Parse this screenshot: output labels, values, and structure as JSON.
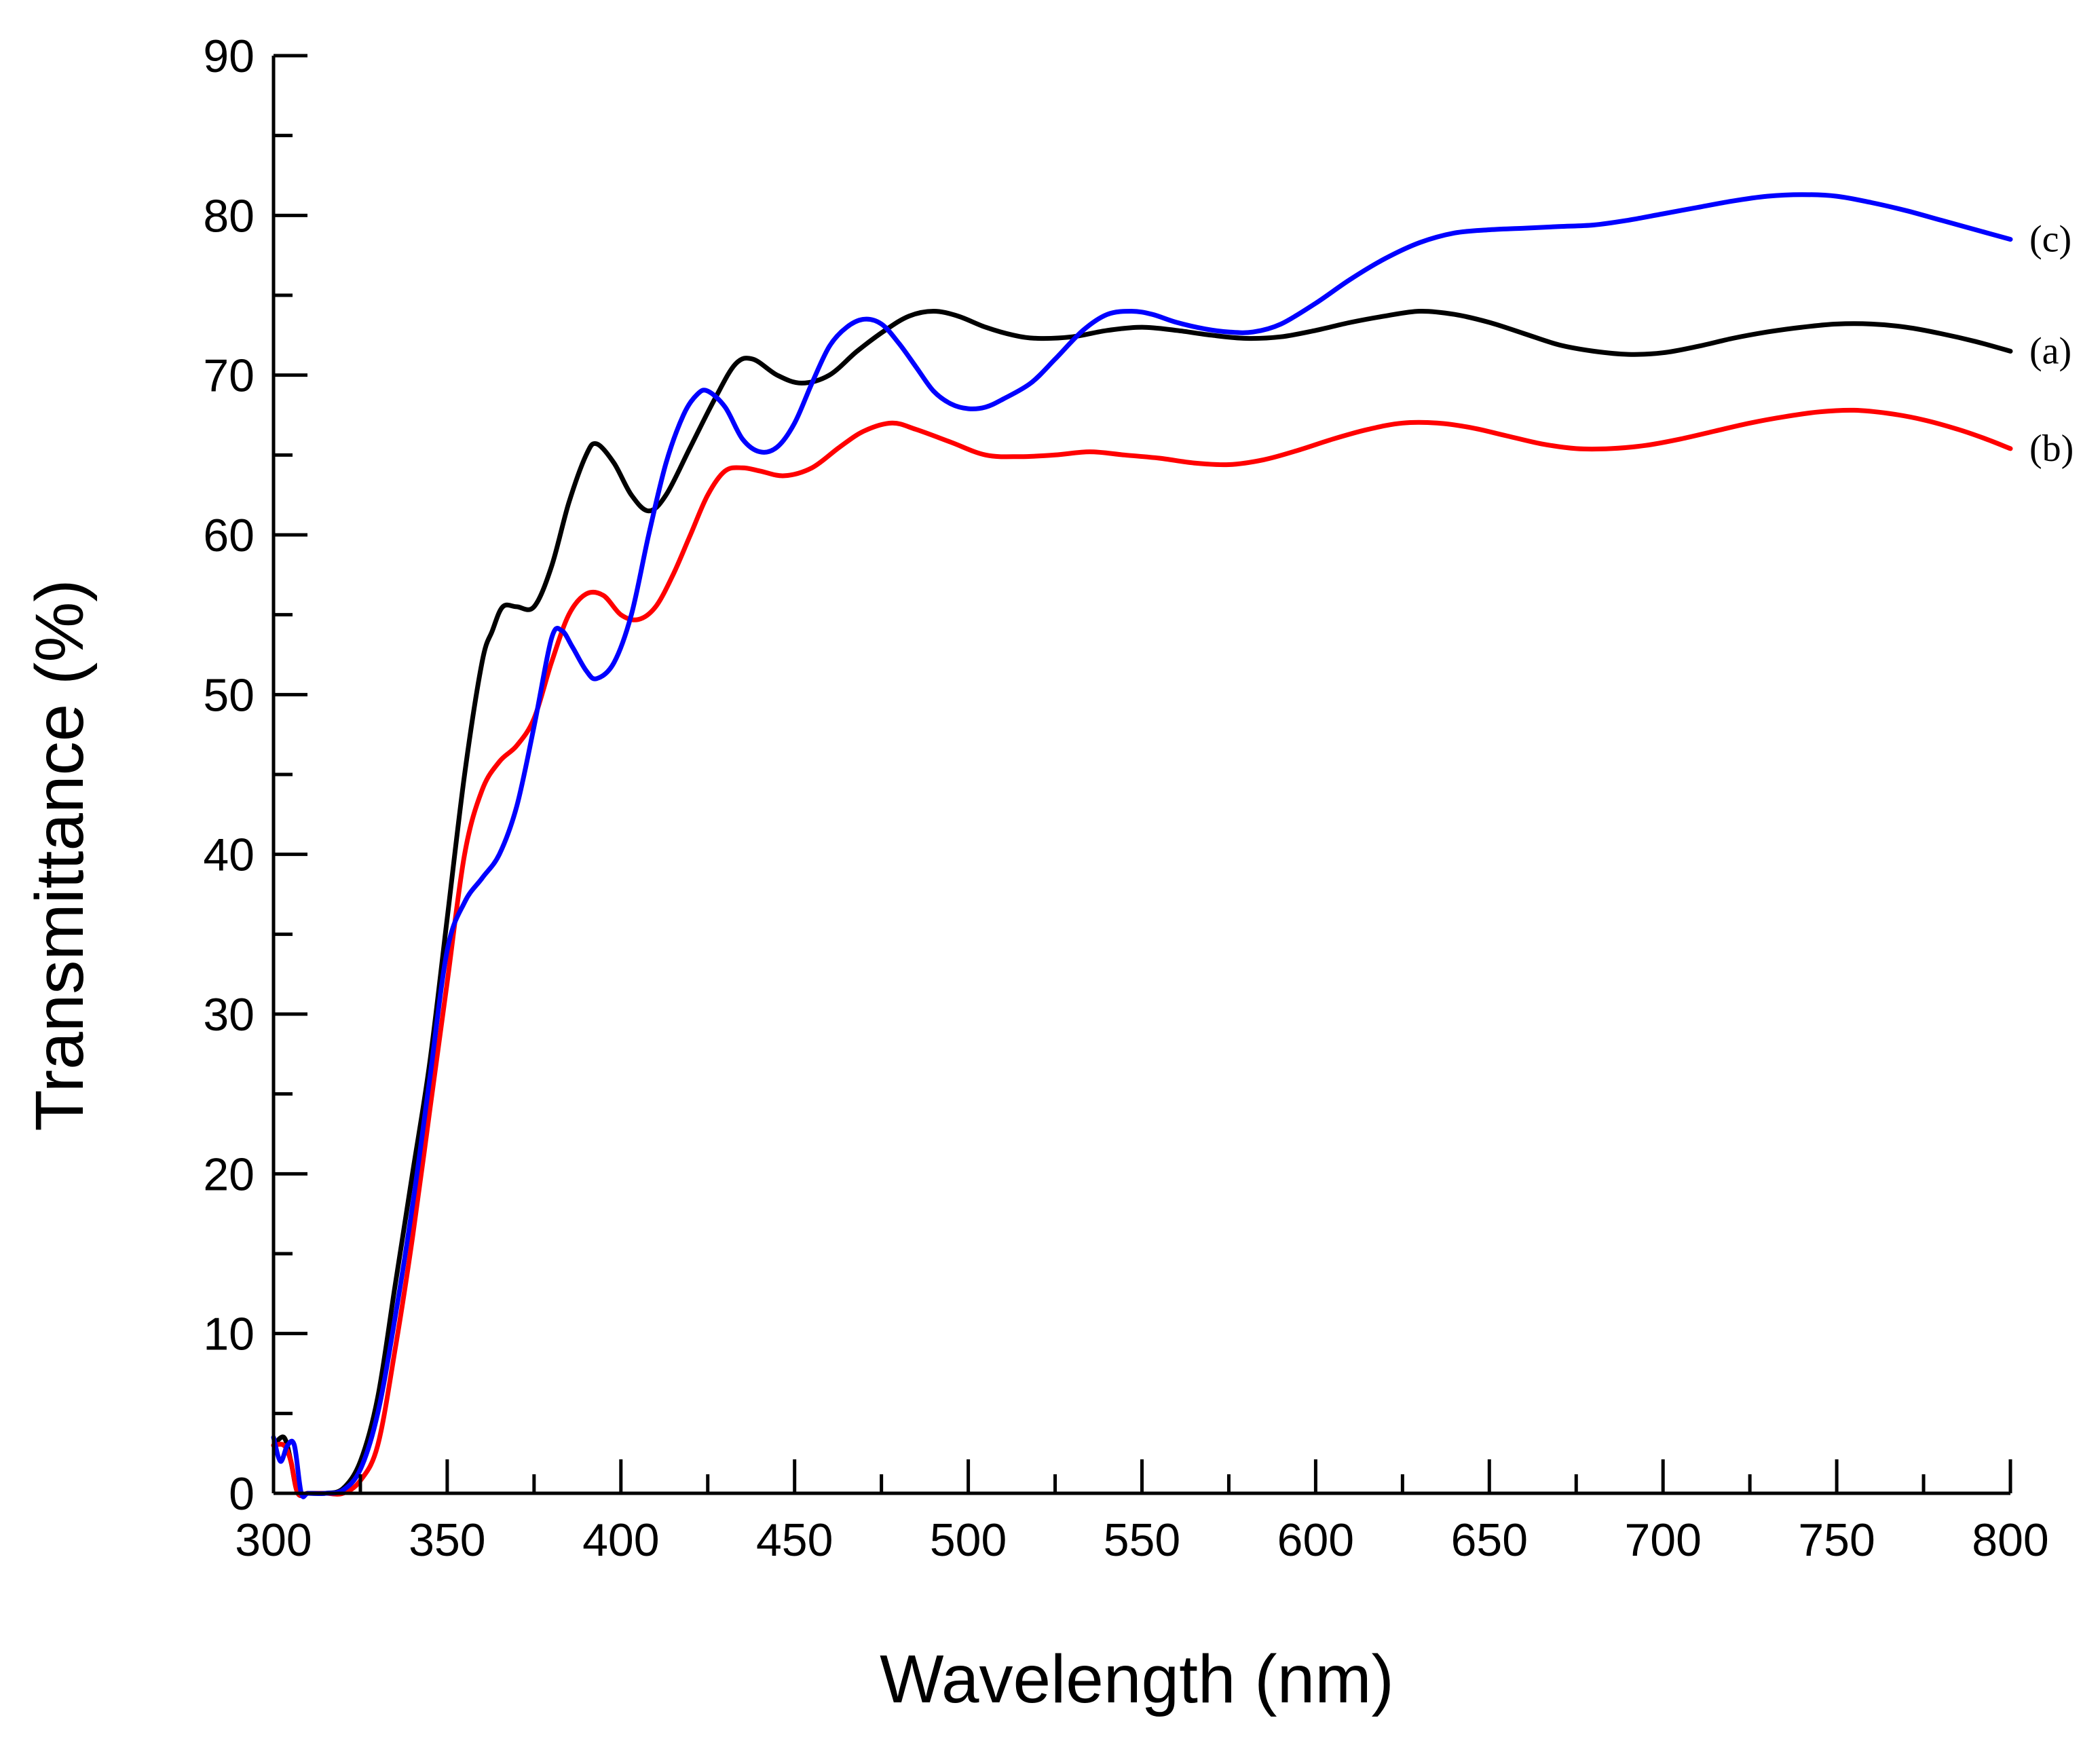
{
  "chart_data": {
    "type": "line",
    "title": "",
    "xlabel": "Wavelength (nm)",
    "ylabel": "Transmittance (%)",
    "xlim": [
      300,
      800
    ],
    "ylim": [
      0,
      90
    ],
    "x_ticks": [
      300,
      350,
      400,
      450,
      500,
      550,
      600,
      650,
      700,
      750,
      800
    ],
    "y_ticks": [
      0,
      10,
      20,
      30,
      40,
      50,
      60,
      70,
      80,
      90
    ],
    "x_tick_labels": [
      "300",
      "350",
      "400",
      "450",
      "500",
      "550",
      "600",
      "650",
      "700",
      "750",
      "800"
    ],
    "y_tick_labels": [
      "0",
      "10",
      "20",
      "30",
      "40",
      "50",
      "60",
      "70",
      "80",
      "90"
    ],
    "grid": false,
    "series": [
      {
        "name": "(a)",
        "color": "#000000",
        "points": [
          [
            300,
            3
          ],
          [
            303,
            3.5
          ],
          [
            305,
            2
          ],
          [
            307,
            0
          ],
          [
            310,
            0
          ],
          [
            315,
            0
          ],
          [
            320,
            0.3
          ],
          [
            325,
            2
          ],
          [
            330,
            6
          ],
          [
            335,
            13
          ],
          [
            340,
            20
          ],
          [
            345,
            27
          ],
          [
            350,
            36
          ],
          [
            355,
            45
          ],
          [
            360,
            52
          ],
          [
            363,
            54
          ],
          [
            366,
            55.5
          ],
          [
            370,
            55.5
          ],
          [
            375,
            55.5
          ],
          [
            380,
            58
          ],
          [
            385,
            62
          ],
          [
            390,
            65
          ],
          [
            393,
            65.7
          ],
          [
            398,
            64.5
          ],
          [
            403,
            62.5
          ],
          [
            408,
            61.5
          ],
          [
            413,
            62.5
          ],
          [
            420,
            65.5
          ],
          [
            427,
            68.5
          ],
          [
            433,
            70.7
          ],
          [
            438,
            71
          ],
          [
            445,
            70
          ],
          [
            452,
            69.5
          ],
          [
            460,
            70
          ],
          [
            468,
            71.5
          ],
          [
            476,
            72.8
          ],
          [
            483,
            73.7
          ],
          [
            490,
            74
          ],
          [
            497,
            73.7
          ],
          [
            505,
            73
          ],
          [
            513,
            72.5
          ],
          [
            520,
            72.3
          ],
          [
            530,
            72.4
          ],
          [
            540,
            72.8
          ],
          [
            550,
            73
          ],
          [
            560,
            72.8
          ],
          [
            570,
            72.5
          ],
          [
            580,
            72.3
          ],
          [
            590,
            72.4
          ],
          [
            600,
            72.8
          ],
          [
            610,
            73.3
          ],
          [
            620,
            73.7
          ],
          [
            630,
            74
          ],
          [
            640,
            73.8
          ],
          [
            650,
            73.3
          ],
          [
            660,
            72.6
          ],
          [
            670,
            71.9
          ],
          [
            680,
            71.5
          ],
          [
            690,
            71.3
          ],
          [
            700,
            71.4
          ],
          [
            710,
            71.8
          ],
          [
            720,
            72.3
          ],
          [
            730,
            72.7
          ],
          [
            740,
            73
          ],
          [
            750,
            73.2
          ],
          [
            760,
            73.2
          ],
          [
            770,
            73
          ],
          [
            780,
            72.6
          ],
          [
            790,
            72.1
          ],
          [
            800,
            71.5
          ]
        ]
      },
      {
        "name": "(b)",
        "color": "#ff0000",
        "points": [
          [
            300,
            3
          ],
          [
            303,
            3
          ],
          [
            305,
            2
          ],
          [
            307,
            0
          ],
          [
            310,
            0
          ],
          [
            315,
            0
          ],
          [
            320,
            0
          ],
          [
            325,
            0.8
          ],
          [
            330,
            3
          ],
          [
            335,
            9
          ],
          [
            340,
            16
          ],
          [
            345,
            24
          ],
          [
            350,
            32
          ],
          [
            355,
            40
          ],
          [
            360,
            44
          ],
          [
            365,
            45.8
          ],
          [
            370,
            46.8
          ],
          [
            375,
            48.5
          ],
          [
            380,
            52
          ],
          [
            385,
            55
          ],
          [
            390,
            56.3
          ],
          [
            395,
            56.2
          ],
          [
            400,
            55
          ],
          [
            405,
            54.7
          ],
          [
            410,
            55.5
          ],
          [
            415,
            57.5
          ],
          [
            420,
            60
          ],
          [
            425,
            62.5
          ],
          [
            430,
            64
          ],
          [
            435,
            64.2
          ],
          [
            440,
            64
          ],
          [
            447,
            63.7
          ],
          [
            455,
            64.2
          ],
          [
            463,
            65.5
          ],
          [
            470,
            66.5
          ],
          [
            478,
            67
          ],
          [
            485,
            66.6
          ],
          [
            495,
            65.8
          ],
          [
            505,
            65
          ],
          [
            515,
            64.9
          ],
          [
            525,
            65
          ],
          [
            535,
            65.2
          ],
          [
            545,
            65
          ],
          [
            555,
            64.8
          ],
          [
            565,
            64.5
          ],
          [
            575,
            64.4
          ],
          [
            585,
            64.7
          ],
          [
            595,
            65.3
          ],
          [
            605,
            66
          ],
          [
            615,
            66.6
          ],
          [
            625,
            67
          ],
          [
            635,
            67
          ],
          [
            645,
            66.7
          ],
          [
            655,
            66.2
          ],
          [
            665,
            65.7
          ],
          [
            675,
            65.4
          ],
          [
            685,
            65.4
          ],
          [
            695,
            65.6
          ],
          [
            705,
            66
          ],
          [
            715,
            66.5
          ],
          [
            725,
            67
          ],
          [
            735,
            67.4
          ],
          [
            745,
            67.7
          ],
          [
            755,
            67.8
          ],
          [
            765,
            67.6
          ],
          [
            775,
            67.2
          ],
          [
            785,
            66.6
          ],
          [
            793,
            66
          ],
          [
            800,
            65.4
          ]
        ]
      },
      {
        "name": "(c)",
        "color": "#0000ff",
        "points": [
          [
            300,
            3.5
          ],
          [
            302,
            2
          ],
          [
            304,
            3
          ],
          [
            306,
            3
          ],
          [
            308,
            0
          ],
          [
            310,
            0
          ],
          [
            315,
            0
          ],
          [
            320,
            0.2
          ],
          [
            325,
            1.5
          ],
          [
            330,
            5
          ],
          [
            335,
            11
          ],
          [
            340,
            18
          ],
          [
            345,
            26
          ],
          [
            350,
            34
          ],
          [
            355,
            37
          ],
          [
            360,
            38.5
          ],
          [
            365,
            40
          ],
          [
            370,
            43
          ],
          [
            375,
            48
          ],
          [
            380,
            53.5
          ],
          [
            383,
            54
          ],
          [
            386,
            53
          ],
          [
            390,
            51.5
          ],
          [
            393,
            51
          ],
          [
            398,
            52
          ],
          [
            403,
            55
          ],
          [
            408,
            60
          ],
          [
            413,
            64.5
          ],
          [
            418,
            67.5
          ],
          [
            422,
            68.8
          ],
          [
            425,
            69
          ],
          [
            430,
            68
          ],
          [
            435,
            66
          ],
          [
            440,
            65.2
          ],
          [
            445,
            65.5
          ],
          [
            450,
            67
          ],
          [
            455,
            69.5
          ],
          [
            460,
            71.8
          ],
          [
            465,
            73
          ],
          [
            470,
            73.5
          ],
          [
            475,
            73.2
          ],
          [
            480,
            72
          ],
          [
            485,
            70.5
          ],
          [
            490,
            69
          ],
          [
            495,
            68.2
          ],
          [
            500,
            67.9
          ],
          [
            505,
            68
          ],
          [
            510,
            68.5
          ],
          [
            518,
            69.5
          ],
          [
            525,
            71
          ],
          [
            533,
            72.8
          ],
          [
            540,
            73.8
          ],
          [
            547,
            74
          ],
          [
            553,
            73.8
          ],
          [
            560,
            73.3
          ],
          [
            568,
            72.9
          ],
          [
            575,
            72.7
          ],
          [
            582,
            72.7
          ],
          [
            590,
            73.2
          ],
          [
            600,
            74.5
          ],
          [
            610,
            76
          ],
          [
            620,
            77.3
          ],
          [
            630,
            78.3
          ],
          [
            640,
            78.9
          ],
          [
            650,
            79.1
          ],
          [
            660,
            79.2
          ],
          [
            670,
            79.3
          ],
          [
            680,
            79.4
          ],
          [
            690,
            79.7
          ],
          [
            700,
            80.1
          ],
          [
            710,
            80.5
          ],
          [
            720,
            80.9
          ],
          [
            730,
            81.2
          ],
          [
            740,
            81.3
          ],
          [
            750,
            81.2
          ],
          [
            760,
            80.8
          ],
          [
            770,
            80.3
          ],
          [
            780,
            79.7
          ],
          [
            790,
            79.1
          ],
          [
            800,
            78.5
          ]
        ]
      }
    ]
  }
}
